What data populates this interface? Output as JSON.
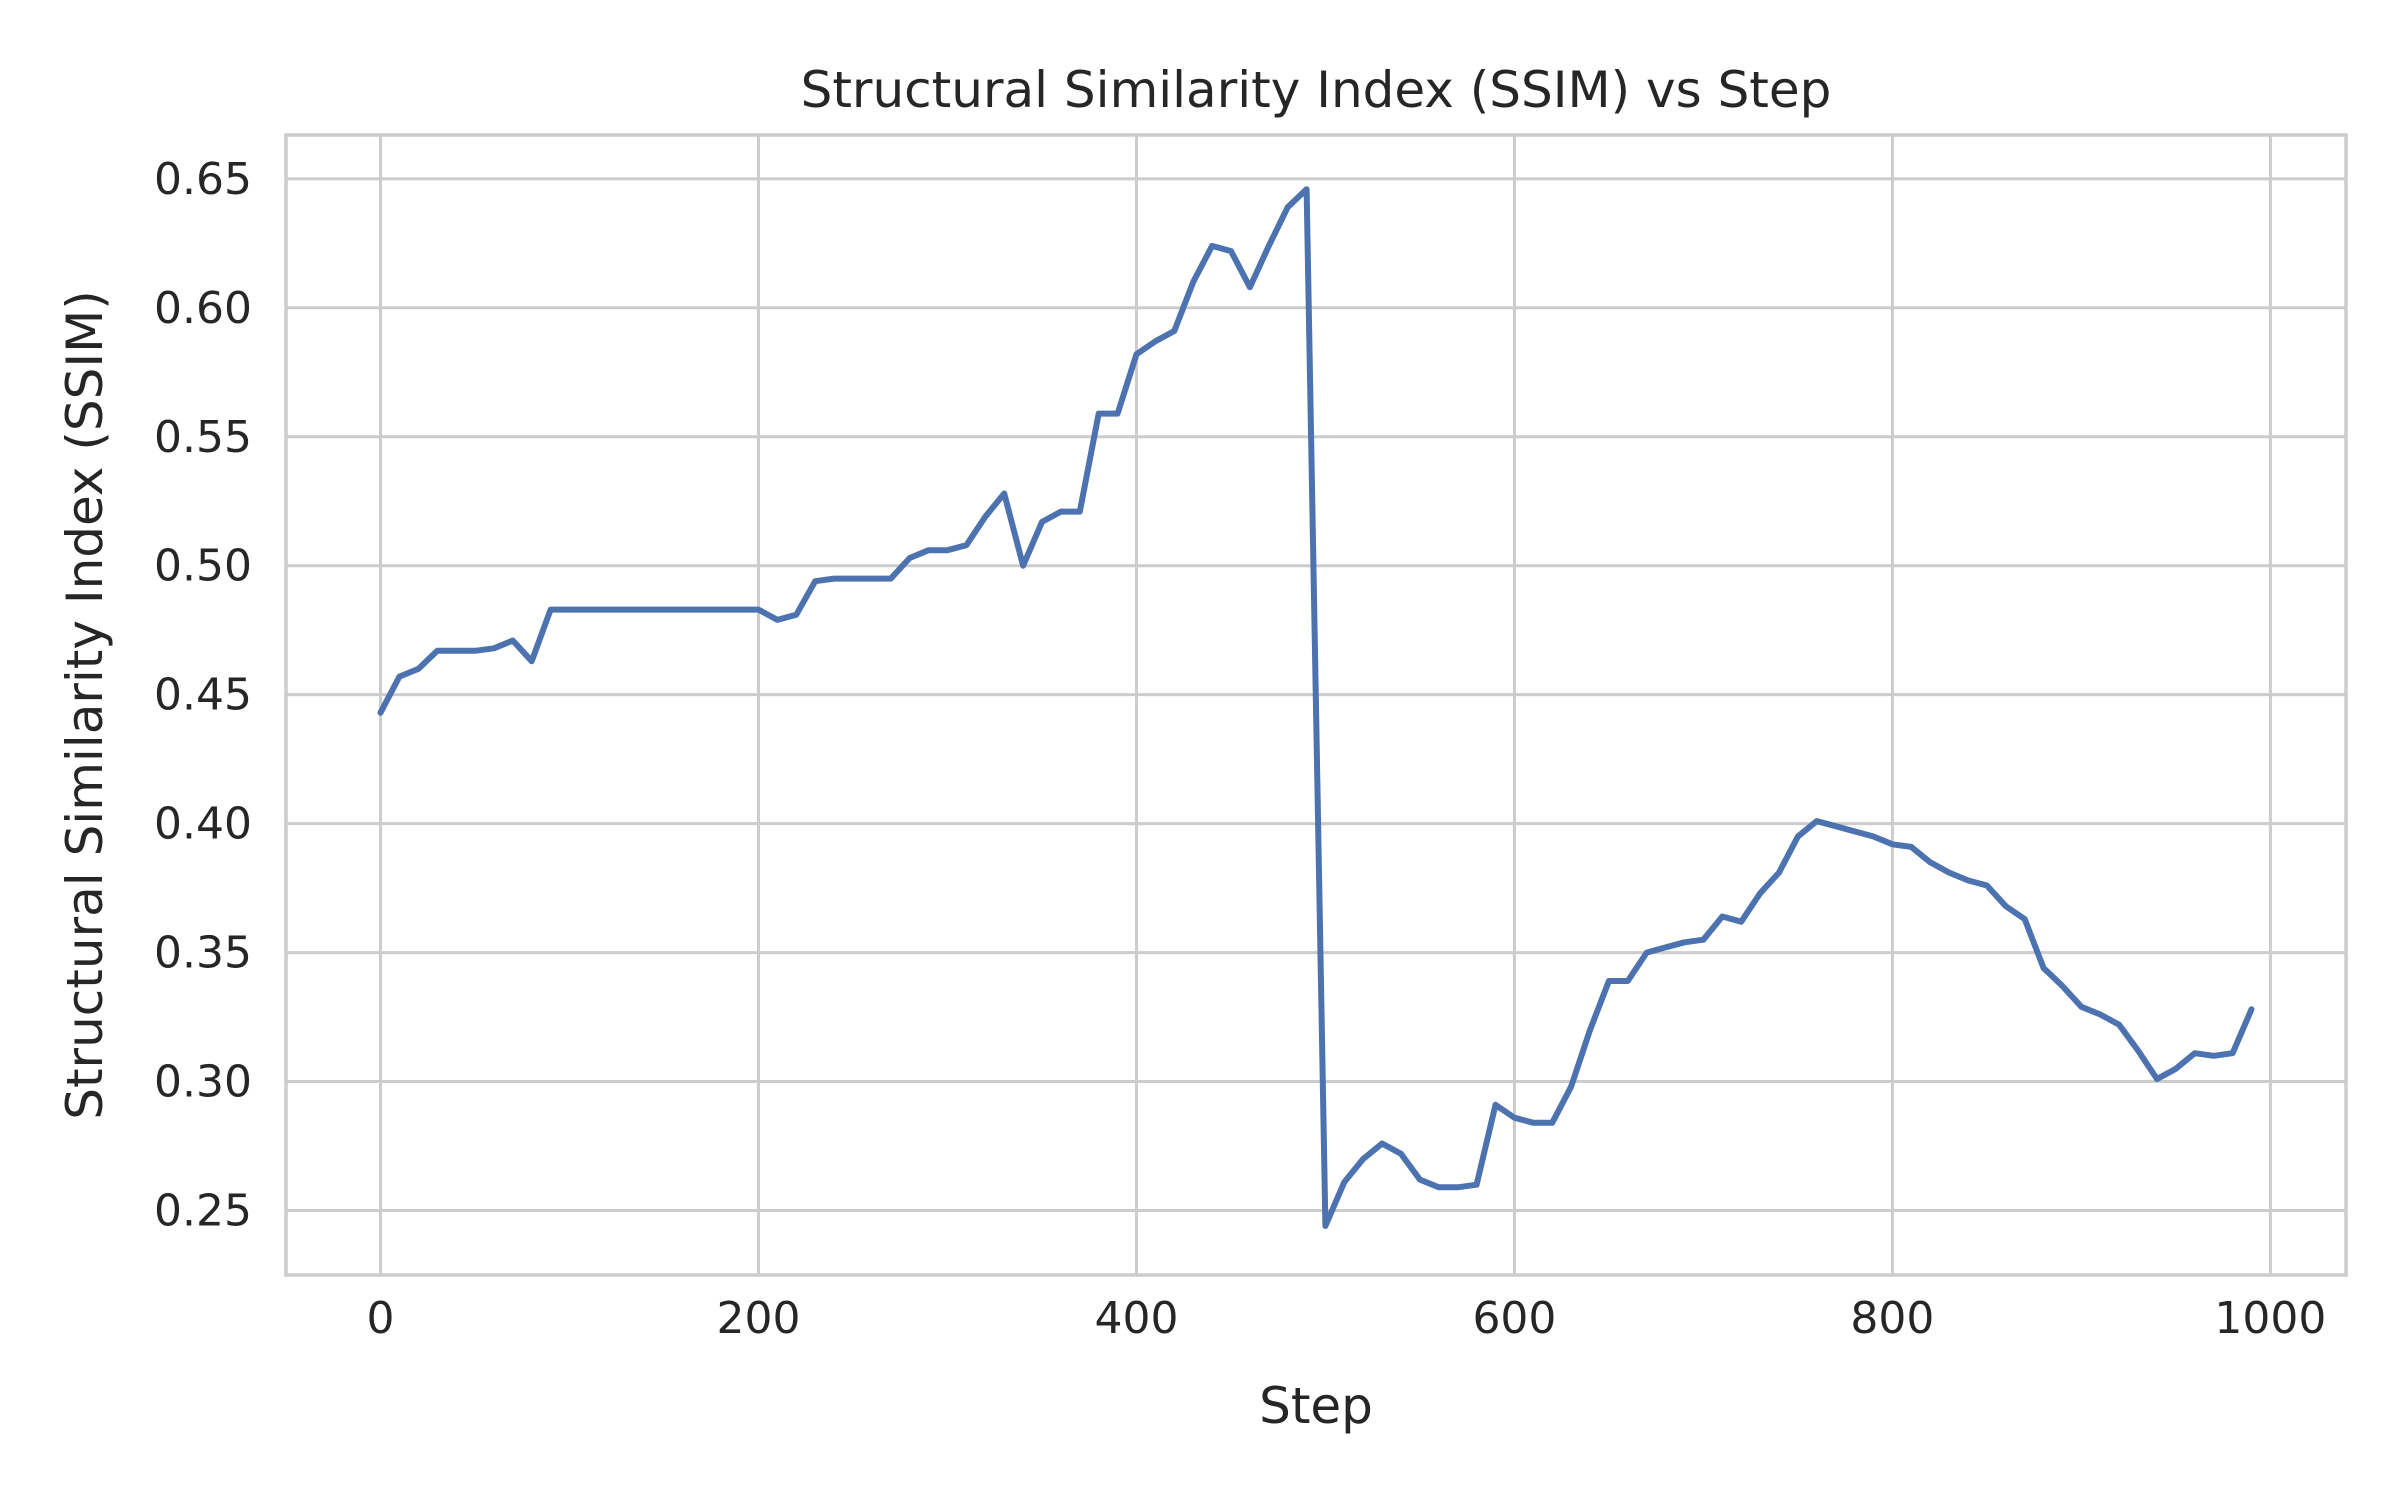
{
  "chart_data": {
    "type": "line",
    "title": "Structural Similarity Index (SSIM) vs Step",
    "xlabel": "Step",
    "ylabel": "Structural Similarity Index (SSIM)",
    "xlim": [
      -50,
      1040
    ],
    "ylim": [
      0.225,
      0.667
    ],
    "xticks": [
      0,
      200,
      400,
      600,
      800,
      1000
    ],
    "xtick_labels": [
      "0",
      "200",
      "400",
      "600",
      "800",
      "1000"
    ],
    "yticks": [
      0.25,
      0.3,
      0.35,
      0.4,
      0.45,
      0.5,
      0.55,
      0.6,
      0.65
    ],
    "ytick_labels": [
      "0.25",
      "0.30",
      "0.35",
      "0.40",
      "0.45",
      "0.50",
      "0.55",
      "0.60",
      "0.65"
    ],
    "grid": true,
    "legend": "none",
    "colors": {
      "line": "#4c72b0",
      "grid": "#cccccc",
      "text": "#262626"
    },
    "series": [
      {
        "x": [
          0,
          10,
          20,
          30,
          40,
          50,
          60,
          70,
          80,
          90,
          100,
          110,
          120,
          130,
          140,
          150,
          160,
          170,
          180,
          190,
          200,
          210,
          220,
          230,
          240,
          250,
          260,
          270,
          280,
          290,
          300,
          310,
          320,
          330,
          340,
          350,
          360,
          370,
          380,
          390,
          400,
          410,
          420,
          430,
          440,
          450,
          460,
          470,
          480,
          490,
          500,
          510,
          520,
          530,
          540,
          550,
          560,
          570,
          580,
          590,
          600,
          610,
          620,
          630,
          640,
          650,
          660,
          670,
          680,
          690,
          700,
          710,
          720,
          730,
          740,
          750,
          760,
          770,
          780,
          790,
          800,
          810,
          820,
          830,
          840,
          850,
          860,
          870,
          880,
          890,
          900,
          910,
          920,
          930,
          940,
          950,
          960,
          970,
          980,
          990
        ],
        "values": [
          0.443,
          0.457,
          0.46,
          0.467,
          0.467,
          0.467,
          0.468,
          0.471,
          0.463,
          0.483,
          0.483,
          0.483,
          0.483,
          0.483,
          0.483,
          0.483,
          0.483,
          0.483,
          0.483,
          0.483,
          0.483,
          0.479,
          0.481,
          0.494,
          0.495,
          0.495,
          0.495,
          0.495,
          0.503,
          0.506,
          0.506,
          0.508,
          0.519,
          0.528,
          0.5,
          0.517,
          0.521,
          0.521,
          0.559,
          0.559,
          0.582,
          0.587,
          0.591,
          0.61,
          0.624,
          0.622,
          0.608,
          0.624,
          0.639,
          0.646,
          0.244,
          0.261,
          0.27,
          0.276,
          0.272,
          0.262,
          0.259,
          0.259,
          0.26,
          0.291,
          0.286,
          0.284,
          0.284,
          0.298,
          0.32,
          0.339,
          0.339,
          0.35,
          0.352,
          0.354,
          0.355,
          0.364,
          0.362,
          0.373,
          0.381,
          0.395,
          0.401,
          0.399,
          0.397,
          0.395,
          0.392,
          0.391,
          0.385,
          0.381,
          0.378,
          0.376,
          0.368,
          0.363,
          0.344,
          0.337,
          0.329,
          0.326,
          0.322,
          0.312,
          0.301,
          0.305,
          0.311,
          0.31,
          0.311,
          0.328
        ]
      }
    ]
  }
}
